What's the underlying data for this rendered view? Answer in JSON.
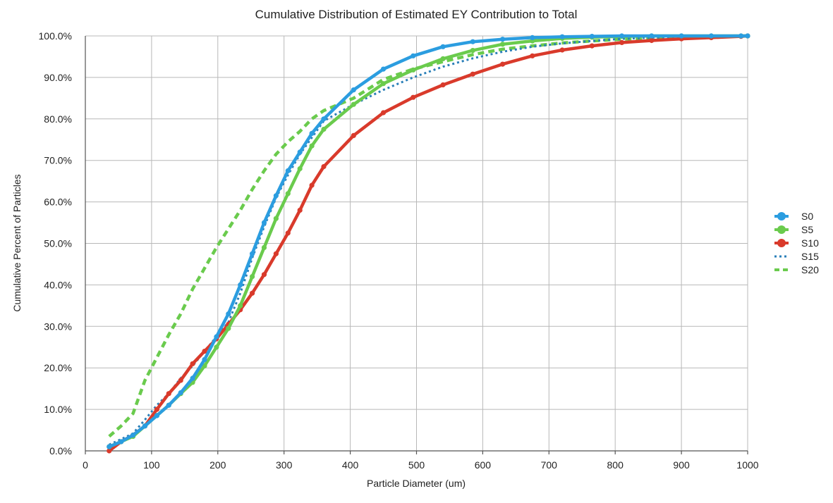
{
  "chart_data": {
    "type": "line",
    "title": "Cumulative Distribution of Estimated EY Contribution to Total",
    "xlabel": "Particle Diameter (um)",
    "ylabel": "Cumulative Percent of Particles",
    "xlim": [
      0,
      1000
    ],
    "ylim": [
      0,
      100
    ],
    "x_ticks": [
      "0",
      "100",
      "200",
      "300",
      "400",
      "500",
      "600",
      "700",
      "800",
      "900",
      "1000"
    ],
    "y_ticks": [
      "0.0%",
      "10.0%",
      "20.0%",
      "30.0%",
      "40.0%",
      "50.0%",
      "60.0%",
      "70.0%",
      "80.0%",
      "90.0%",
      "100.0%"
    ],
    "grid": true,
    "legend_position": "right",
    "series": [
      {
        "name": "S0",
        "color": "#2b9de0",
        "style": "solid-dots",
        "x": [
          36,
          54,
          72,
          90,
          108,
          126,
          144,
          162,
          180,
          198,
          216,
          234,
          252,
          270,
          288,
          306,
          324,
          342,
          360,
          405,
          450,
          495,
          540,
          585,
          630,
          675,
          720,
          765,
          810,
          855,
          900,
          945,
          990,
          1000
        ],
        "y": [
          1,
          2.2,
          3.8,
          6,
          8.5,
          11,
          14,
          17.5,
          22,
          27.5,
          33,
          40,
          47.5,
          55,
          61.5,
          67.5,
          72,
          76.5,
          80,
          87,
          92,
          95.2,
          97.4,
          98.6,
          99.2,
          99.6,
          99.8,
          99.9,
          100,
          100,
          100,
          100,
          100,
          100
        ]
      },
      {
        "name": "S5",
        "color": "#6acb4d",
        "style": "solid-dots",
        "x": [
          36,
          54,
          72,
          90,
          108,
          126,
          144,
          162,
          180,
          198,
          216,
          234,
          252,
          270,
          288,
          306,
          324,
          342,
          360,
          405,
          450,
          495,
          540,
          585,
          630,
          675,
          720,
          765,
          810,
          855,
          900,
          945,
          990,
          1000
        ],
        "y": [
          1,
          2.2,
          3.5,
          6,
          8.5,
          11,
          13.8,
          16.5,
          20.5,
          25,
          29.5,
          35,
          42,
          49,
          56,
          62,
          68,
          73.5,
          77.5,
          83.5,
          88.5,
          91.8,
          94.5,
          96.5,
          98,
          98.8,
          99.4,
          99.7,
          99.9,
          100,
          100,
          100,
          100,
          100
        ]
      },
      {
        "name": "S10",
        "color": "#d93a2b",
        "style": "solid-dots",
        "x": [
          36,
          54,
          72,
          90,
          108,
          126,
          144,
          162,
          180,
          198,
          216,
          234,
          252,
          270,
          288,
          306,
          324,
          342,
          360,
          405,
          450,
          495,
          540,
          585,
          630,
          675,
          720,
          765,
          810,
          855,
          900,
          945,
          990,
          1000
        ],
        "y": [
          0,
          2.2,
          3.8,
          6,
          10,
          13.8,
          17,
          21,
          24,
          27,
          30.5,
          34,
          38,
          42.5,
          47.5,
          52.5,
          58,
          64,
          68.5,
          76,
          81.5,
          85.2,
          88.2,
          90.8,
          93.2,
          95.2,
          96.6,
          97.6,
          98.4,
          98.9,
          99.3,
          99.6,
          99.9,
          100
        ]
      },
      {
        "name": "S15",
        "color": "#2a7fb8",
        "style": "dotted",
        "x": [
          36,
          54,
          72,
          90,
          108,
          126,
          144,
          162,
          180,
          198,
          216,
          234,
          252,
          270,
          288,
          306,
          324,
          342,
          360,
          405,
          450,
          495,
          540,
          585,
          630,
          675,
          720,
          765,
          810,
          855,
          900,
          945,
          990,
          1000
        ],
        "y": [
          1.5,
          2.8,
          4.2,
          7.5,
          11,
          13.8,
          17.5,
          20.5,
          24,
          27.5,
          31,
          38,
          46.5,
          54,
          61,
          66.5,
          71.5,
          75.5,
          79.5,
          83.5,
          87,
          90,
          92.6,
          94.6,
          96.2,
          97.4,
          98.2,
          98.8,
          99.3,
          99.6,
          99.8,
          99.9,
          100,
          100
        ]
      },
      {
        "name": "S20",
        "color": "#6acb4d",
        "style": "dashed",
        "x": [
          36,
          54,
          72,
          90,
          108,
          126,
          144,
          162,
          180,
          198,
          216,
          234,
          252,
          270,
          288,
          306,
          324,
          342,
          360,
          405,
          450,
          495,
          540,
          585,
          630,
          675,
          720,
          765,
          810,
          855,
          900,
          945,
          990,
          1000
        ],
        "y": [
          3.5,
          6,
          9,
          17,
          22.5,
          28,
          33,
          39,
          44,
          49,
          53.5,
          58,
          63,
          67.5,
          71.5,
          74.5,
          77,
          80,
          82,
          85,
          89.5,
          92,
          93.8,
          95.5,
          96.8,
          97.6,
          98.3,
          98.8,
          99.2,
          99.5,
          99.7,
          99.9,
          100,
          100
        ]
      }
    ]
  }
}
